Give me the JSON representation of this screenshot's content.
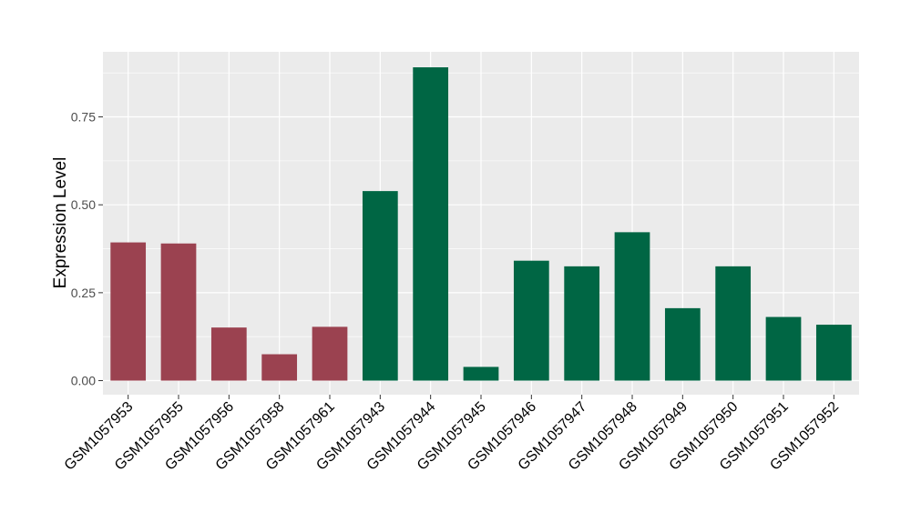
{
  "chart_data": {
    "type": "bar",
    "title": "",
    "xlabel": "",
    "ylabel": "Expression Level",
    "ylim": [
      -0.04,
      0.935
    ],
    "yticks": [
      0.0,
      0.25,
      0.5,
      0.75
    ],
    "ytick_labels": [
      "0.00",
      "0.25",
      "0.50",
      "0.75"
    ],
    "grid": true,
    "legend": "none",
    "panel_background": "#EBEBEB",
    "grid_color": "#FFFFFF",
    "categories": [
      "GSM1057953",
      "GSM1057955",
      "GSM1057956",
      "GSM1057958",
      "GSM1057961",
      "GSM1057943",
      "GSM1057944",
      "GSM1057945",
      "GSM1057946",
      "GSM1057947",
      "GSM1057948",
      "GSM1057949",
      "GSM1057950",
      "GSM1057951",
      "GSM1057952"
    ],
    "values": [
      0.393,
      0.39,
      0.151,
      0.075,
      0.153,
      0.539,
      0.891,
      0.039,
      0.341,
      0.325,
      0.422,
      0.206,
      0.325,
      0.181,
      0.159
    ],
    "colors": [
      "#9B4250",
      "#9B4250",
      "#9B4250",
      "#9B4250",
      "#9B4250",
      "#006644",
      "#006644",
      "#006644",
      "#006644",
      "#006644",
      "#006644",
      "#006644",
      "#006644",
      "#006644",
      "#006644"
    ]
  }
}
